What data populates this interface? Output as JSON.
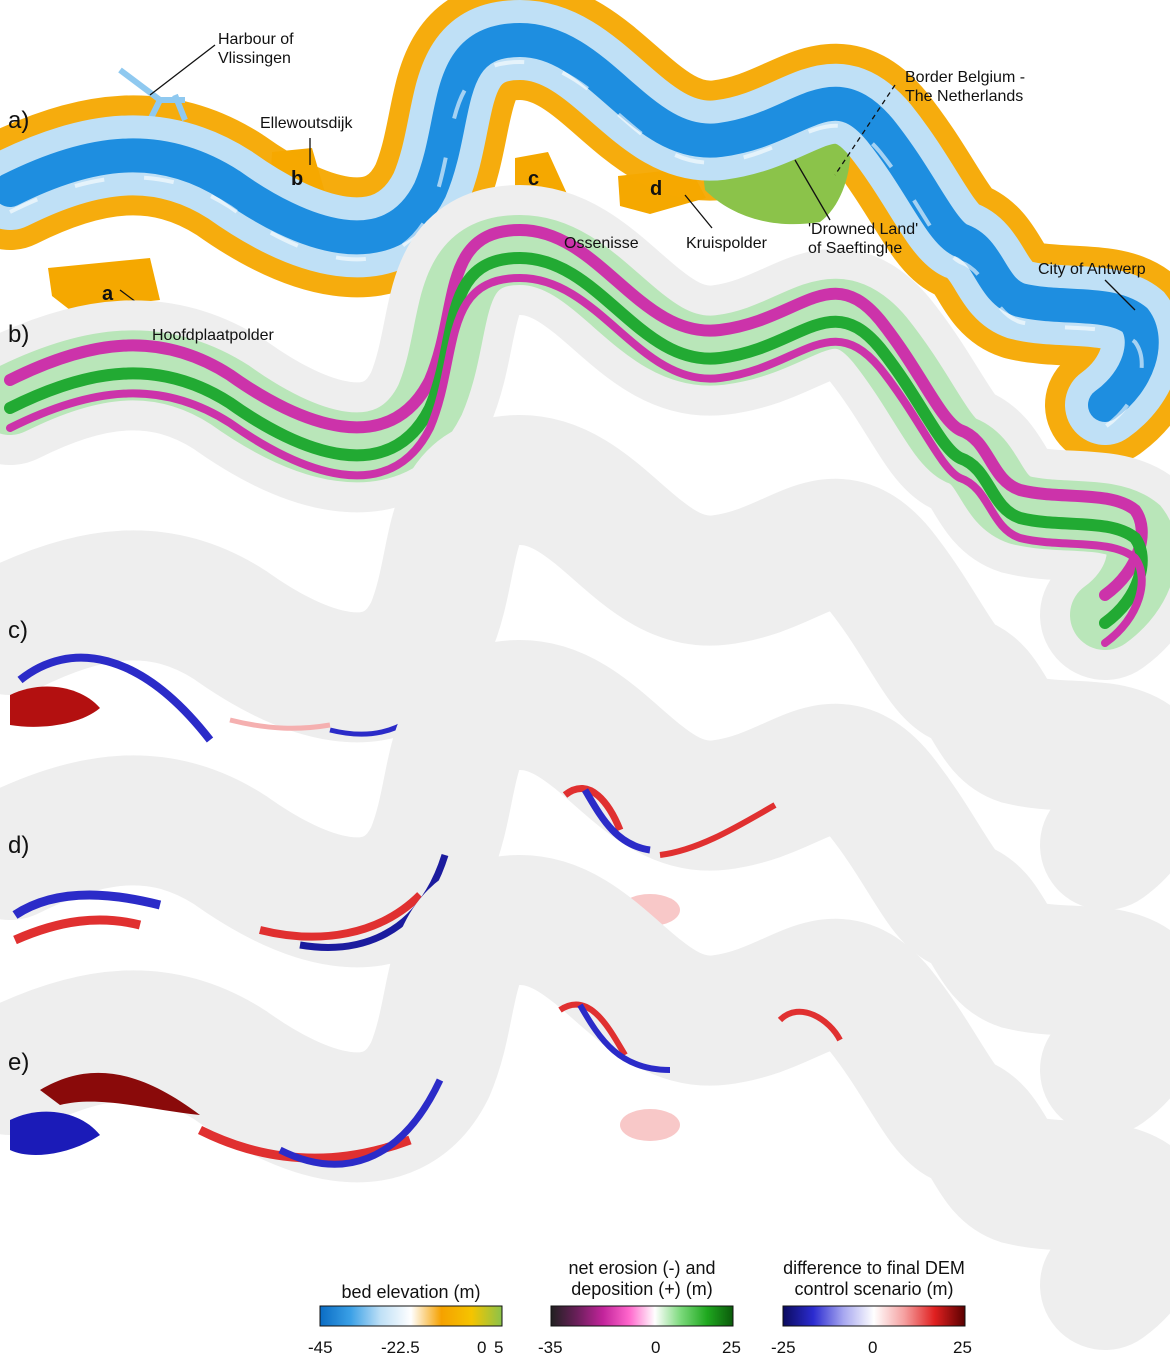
{
  "panels": [
    "a)",
    "b)",
    "c)",
    "d)",
    "e)"
  ],
  "places": {
    "vlissingen": "Harbour of\nVlissingen",
    "ellewoutsdijk": "Ellewoutsdijk",
    "border": "Border Belgium -\nThe Netherlands",
    "ossenisse": "Ossenisse",
    "kruispolder": "Kruispolder",
    "saeftinghe": "'Drowned Land'\nof Saeftinghe",
    "antwerp": "City of Antwerp",
    "hoofdplaatpolder": "Hoofdplaatpolder"
  },
  "polders": [
    "a",
    "b",
    "c",
    "d"
  ],
  "colorbars": [
    {
      "title": "bed elevation (m)",
      "ticks": [
        "-45",
        "-22.5",
        "0",
        "5"
      ],
      "stops": [
        "#0a6cc4",
        "#3aa0e6",
        "#bfe0f6",
        "#ffffff",
        "#f5a100",
        "#f5c400",
        "#8bc34a"
      ]
    },
    {
      "title": "net erosion (-) and\ndeposition (+) (m)",
      "ticks": [
        "-35",
        "0",
        "25"
      ],
      "stops": [
        "#202020",
        "#6a1f5a",
        "#c2249b",
        "#ff66cc",
        "#ffffff",
        "#7ad97a",
        "#1fa81f",
        "#0b5a0b"
      ]
    },
    {
      "title": "difference to final DEM\ncontrol scenario (m)",
      "ticks": [
        "-25",
        "0",
        "25"
      ],
      "stops": [
        "#0b0b5e",
        "#2b2bd0",
        "#a8a8f0",
        "#ffffff",
        "#f5a0a0",
        "#e02020",
        "#5a0000"
      ]
    }
  ],
  "colors": {
    "channel": "#1e8ee0",
    "shallow": "#bfe0f6",
    "flat": "#f5a800",
    "marsh": "#8bc34a",
    "footprint": "#eeeeee",
    "erosion": "#cc33aa",
    "deposition": "#22aa33",
    "diff_neg": "#2b2bc8",
    "diff_pos": "#e03030"
  }
}
